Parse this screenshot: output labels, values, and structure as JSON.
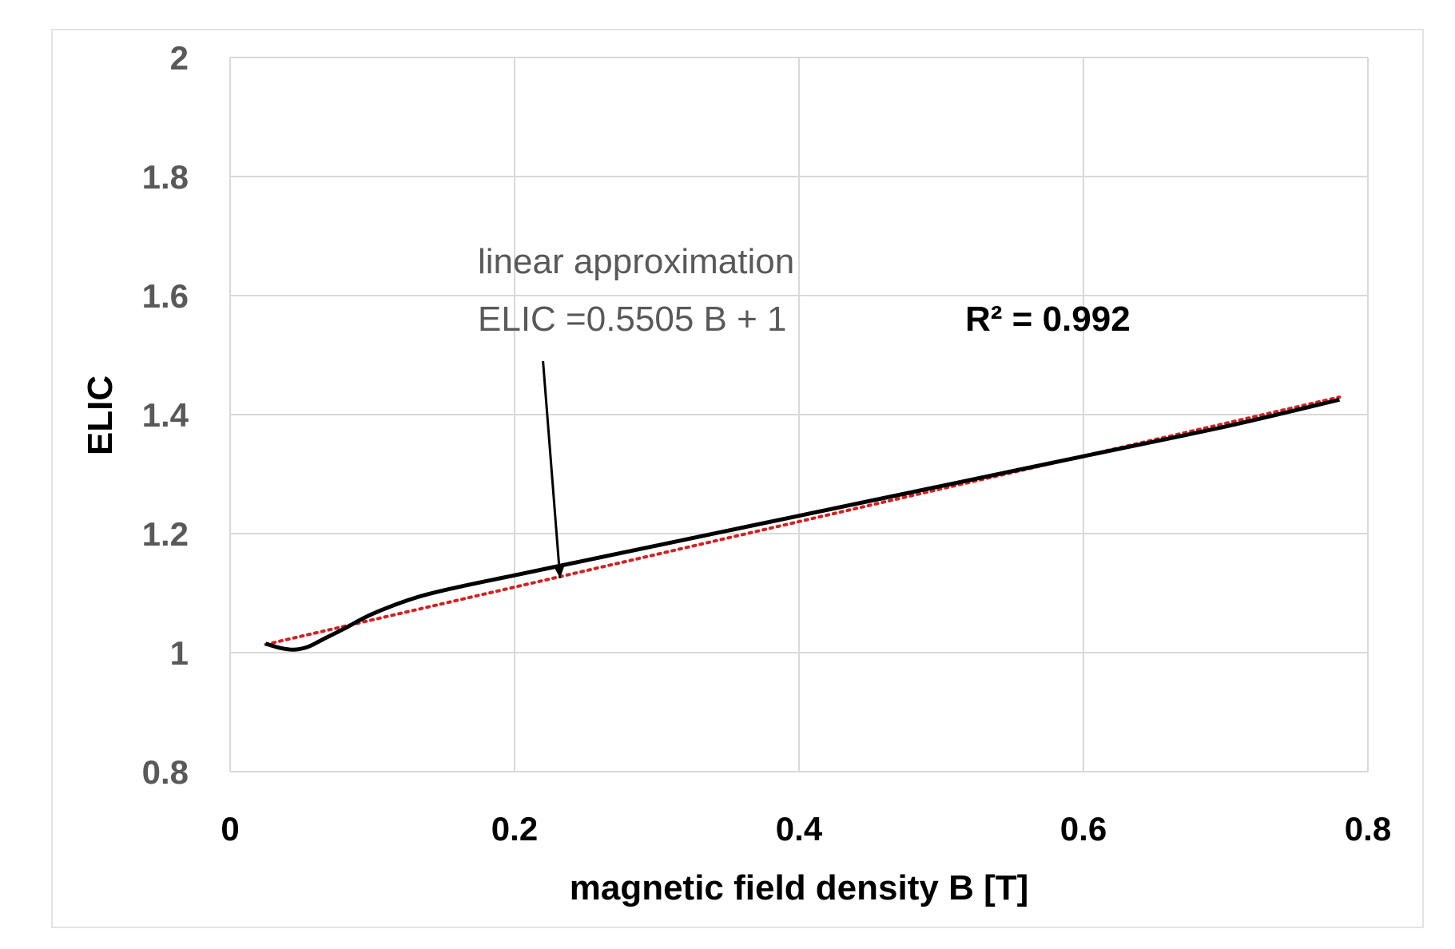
{
  "chart_data": {
    "type": "line",
    "title": "",
    "xlabel": "magnetic field density B [T]",
    "ylabel": "ELIC",
    "xlim": [
      0,
      0.8
    ],
    "ylim": [
      0.8,
      2
    ],
    "x_ticks": [
      "0",
      "0.2",
      "0.4",
      "0.6",
      "0.8"
    ],
    "y_ticks": [
      "0.8",
      "1",
      "1.2",
      "1.4",
      "1.6",
      "1.8",
      "2"
    ],
    "grid": true,
    "series": [
      {
        "name": "ELIC",
        "style": "solid",
        "color": "#000000",
        "x": [
          0.025,
          0.035,
          0.045,
          0.055,
          0.065,
          0.08,
          0.1,
          0.13,
          0.16,
          0.2,
          0.25,
          0.3,
          0.4,
          0.5,
          0.6,
          0.7,
          0.78
        ],
        "y": [
          1.015,
          1.008,
          1.005,
          1.01,
          1.022,
          1.04,
          1.065,
          1.092,
          1.11,
          1.13,
          1.155,
          1.18,
          1.23,
          1.28,
          1.33,
          1.38,
          1.425
        ]
      },
      {
        "name": "linear approximation",
        "style": "dotted",
        "color": "#d42020",
        "x": [
          0.025,
          0.78
        ],
        "y": [
          1.0138,
          1.4294
        ]
      }
    ],
    "annotations": {
      "fit_label_line1": "linear approximation",
      "fit_label_line2": "ELIC =0.5505 B + 1",
      "r_squared": "R² = 0.992",
      "arrow_from": [
        0.22,
        1.49
      ],
      "arrow_to": [
        0.232,
        1.125
      ]
    }
  }
}
